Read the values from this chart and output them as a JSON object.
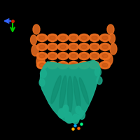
{
  "background_color": "#000000",
  "protein_colors": {
    "teal": "#1BAE8E",
    "orange": "#F07020"
  },
  "teal_dark": "#0E8A6E",
  "orange_dark": "#C05010",
  "ligand_colors": [
    "#00AAFF",
    "#FF6600",
    "#FFAA00",
    "#00FF88"
  ],
  "axis_green": "#00CC00",
  "axis_blue": "#3366FF",
  "axis_red": "#CC2200"
}
